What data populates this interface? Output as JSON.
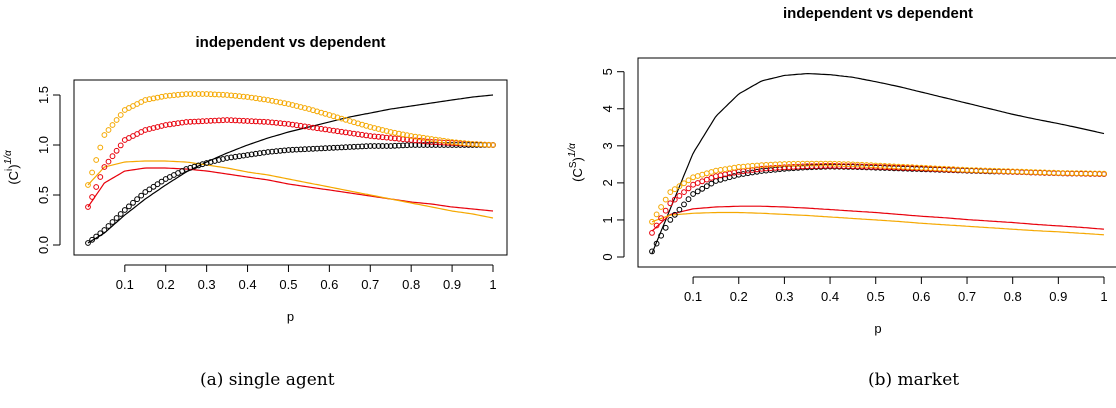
{
  "captions": {
    "a": "(a) single agent",
    "b": "(b) market"
  },
  "colors": {
    "black": "#000000",
    "red": "#e8000b",
    "orange": "#f5a800"
  },
  "chart_data": [
    {
      "type": "line",
      "title": "independent vs dependent",
      "xlabel": "p",
      "ylabel_parts": {
        "pre": "(C",
        "sup": "i",
        "post": ")",
        "exp": "1/α"
      },
      "xlim": [
        0.01,
        1
      ],
      "ylim": [
        0.0,
        1.55
      ],
      "x_ticks": [
        0.1,
        0.2,
        0.3,
        0.4,
        0.5,
        0.6,
        0.7,
        0.8,
        0.9,
        1
      ],
      "x_tick_labels": [
        "0.1",
        "0.2",
        "0.3",
        "0.4",
        "0.5",
        "0.6",
        "0.7",
        "0.8",
        "0.9",
        "1"
      ],
      "y_ticks": [
        0.0,
        0.5,
        1.0,
        1.5
      ],
      "y_tick_labels": [
        "0.0",
        "0.5",
        "1.0",
        "1.5"
      ],
      "x": [
        0.01,
        0.05,
        0.1,
        0.15,
        0.2,
        0.25,
        0.3,
        0.35,
        0.4,
        0.45,
        0.5,
        0.55,
        0.6,
        0.65,
        0.7,
        0.75,
        0.8,
        0.85,
        0.9,
        0.95,
        1.0
      ],
      "series": [
        {
          "style": "line",
          "color": "black",
          "values": [
            0.02,
            0.12,
            0.3,
            0.46,
            0.6,
            0.73,
            0.83,
            0.92,
            1.0,
            1.07,
            1.13,
            1.18,
            1.23,
            1.28,
            1.32,
            1.36,
            1.39,
            1.42,
            1.45,
            1.48,
            1.5
          ]
        },
        {
          "style": "line",
          "color": "red",
          "values": [
            0.38,
            0.62,
            0.74,
            0.77,
            0.77,
            0.76,
            0.74,
            0.71,
            0.68,
            0.65,
            0.61,
            0.58,
            0.55,
            0.52,
            0.49,
            0.46,
            0.43,
            0.41,
            0.38,
            0.36,
            0.34
          ]
        },
        {
          "style": "line",
          "color": "orange",
          "values": [
            0.6,
            0.78,
            0.83,
            0.84,
            0.84,
            0.83,
            0.8,
            0.77,
            0.73,
            0.7,
            0.66,
            0.62,
            0.58,
            0.54,
            0.5,
            0.46,
            0.42,
            0.38,
            0.34,
            0.31,
            0.27
          ]
        },
        {
          "style": "points",
          "color": "black",
          "values": [
            0.02,
            0.15,
            0.35,
            0.53,
            0.66,
            0.76,
            0.82,
            0.87,
            0.9,
            0.93,
            0.95,
            0.96,
            0.97,
            0.98,
            0.99,
            0.99,
            1.0,
            1.0,
            1.0,
            1.0,
            1.0
          ]
        },
        {
          "style": "points",
          "color": "red",
          "values": [
            0.38,
            0.78,
            1.05,
            1.15,
            1.2,
            1.23,
            1.24,
            1.25,
            1.24,
            1.23,
            1.21,
            1.18,
            1.15,
            1.12,
            1.09,
            1.07,
            1.05,
            1.03,
            1.02,
            1.01,
            1.0
          ]
        },
        {
          "style": "points",
          "color": "orange",
          "values": [
            0.6,
            1.1,
            1.35,
            1.45,
            1.49,
            1.51,
            1.51,
            1.5,
            1.48,
            1.45,
            1.41,
            1.36,
            1.3,
            1.24,
            1.18,
            1.13,
            1.09,
            1.06,
            1.03,
            1.01,
            1.0
          ]
        }
      ]
    },
    {
      "type": "line",
      "title": "independent vs dependent",
      "xlabel": "p",
      "ylabel_parts": {
        "pre": "(C",
        "sup": "S",
        "post": ")",
        "exp": "1/α"
      },
      "xlim": [
        0.01,
        1
      ],
      "ylim": [
        0,
        5.1
      ],
      "x_ticks": [
        0.1,
        0.2,
        0.3,
        0.4,
        0.5,
        0.6,
        0.7,
        0.8,
        0.9,
        1
      ],
      "x_tick_labels": [
        "0.1",
        "0.2",
        "0.3",
        "0.4",
        "0.5",
        "0.6",
        "0.7",
        "0.8",
        "0.9",
        "1"
      ],
      "y_ticks": [
        0,
        1,
        2,
        3,
        4,
        5
      ],
      "y_tick_labels": [
        "0",
        "1",
        "2",
        "3",
        "4",
        "5"
      ],
      "x": [
        0.01,
        0.05,
        0.1,
        0.15,
        0.2,
        0.25,
        0.3,
        0.35,
        0.4,
        0.45,
        0.5,
        0.55,
        0.6,
        0.65,
        0.7,
        0.75,
        0.8,
        0.85,
        0.9,
        0.95,
        1.0
      ],
      "series": [
        {
          "style": "line",
          "color": "black",
          "values": [
            0.1,
            1.3,
            2.8,
            3.8,
            4.4,
            4.75,
            4.9,
            4.95,
            4.92,
            4.85,
            4.73,
            4.6,
            4.45,
            4.3,
            4.15,
            4.0,
            3.85,
            3.72,
            3.6,
            3.47,
            3.33
          ]
        },
        {
          "style": "line",
          "color": "red",
          "values": [
            0.7,
            1.15,
            1.3,
            1.35,
            1.37,
            1.37,
            1.35,
            1.32,
            1.28,
            1.24,
            1.2,
            1.15,
            1.1,
            1.06,
            1.01,
            0.97,
            0.93,
            0.88,
            0.84,
            0.8,
            0.75
          ]
        },
        {
          "style": "line",
          "color": "orange",
          "values": [
            0.95,
            1.13,
            1.18,
            1.2,
            1.2,
            1.18,
            1.15,
            1.12,
            1.08,
            1.04,
            1.0,
            0.96,
            0.91,
            0.87,
            0.83,
            0.79,
            0.75,
            0.71,
            0.68,
            0.64,
            0.6
          ]
        },
        {
          "style": "points",
          "color": "black",
          "values": [
            0.15,
            1.0,
            1.7,
            2.05,
            2.22,
            2.32,
            2.38,
            2.42,
            2.44,
            2.43,
            2.41,
            2.39,
            2.37,
            2.35,
            2.33,
            2.31,
            2.3,
            2.28,
            2.26,
            2.25,
            2.24
          ]
        },
        {
          "style": "points",
          "color": "red",
          "values": [
            0.65,
            1.45,
            1.95,
            2.18,
            2.3,
            2.38,
            2.42,
            2.45,
            2.46,
            2.45,
            2.43,
            2.41,
            2.39,
            2.36,
            2.34,
            2.32,
            2.3,
            2.28,
            2.26,
            2.25,
            2.24
          ]
        },
        {
          "style": "points",
          "color": "orange",
          "values": [
            0.95,
            1.75,
            2.15,
            2.33,
            2.43,
            2.48,
            2.51,
            2.52,
            2.52,
            2.5,
            2.47,
            2.44,
            2.41,
            2.38,
            2.35,
            2.33,
            2.31,
            2.29,
            2.27,
            2.26,
            2.25
          ]
        }
      ]
    }
  ]
}
